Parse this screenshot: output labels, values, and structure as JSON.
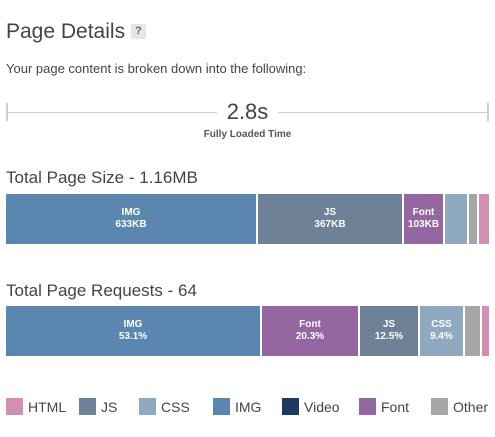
{
  "header": {
    "title": "Page Details",
    "help": "?",
    "subtitle": "Your page content is broken down into the following:"
  },
  "timeline": {
    "value": "2.8s",
    "label": "Fully Loaded Time"
  },
  "colors": {
    "HTML": "#d18fb3",
    "JS": "#6f8196",
    "CSS": "#8fa9c1",
    "IMG": "#5a86b0",
    "Video": "#1c3a63",
    "Font": "#9467a2",
    "Other": "#a6a6a6"
  },
  "page_size": {
    "title": "Total Page Size - 1.16MB",
    "segments": [
      {
        "type": "IMG",
        "name": "IMG",
        "value": "633KB",
        "fraction": 0.521
      },
      {
        "type": "JS",
        "name": "JS",
        "value": "367KB",
        "fraction": 0.302
      },
      {
        "type": "Font",
        "name": "Font",
        "value": "103KB",
        "fraction": 0.085
      },
      {
        "type": "CSS",
        "name": "",
        "value": "",
        "fraction": 0.05
      },
      {
        "type": "Other",
        "name": "",
        "value": "",
        "fraction": 0.02
      },
      {
        "type": "HTML",
        "name": "",
        "value": "",
        "fraction": 0.015
      }
    ]
  },
  "page_requests": {
    "title": "Total Page Requests - 64",
    "segments": [
      {
        "type": "IMG",
        "name": "IMG",
        "value": "53.1%",
        "fraction": 0.531
      },
      {
        "type": "Font",
        "name": "Font",
        "value": "20.3%",
        "fraction": 0.203
      },
      {
        "type": "JS",
        "name": "JS",
        "value": "12.5%",
        "fraction": 0.125
      },
      {
        "type": "CSS",
        "name": "CSS",
        "value": "9.4%",
        "fraction": 0.094
      },
      {
        "type": "Other",
        "name": "",
        "value": "",
        "fraction": 0.035
      },
      {
        "type": "HTML",
        "name": "",
        "value": "",
        "fraction": 0.016
      }
    ]
  },
  "legend": [
    {
      "type": "HTML",
      "label": "HTML"
    },
    {
      "type": "JS",
      "label": "JS"
    },
    {
      "type": "CSS",
      "label": "CSS"
    },
    {
      "type": "IMG",
      "label": "IMG"
    },
    {
      "type": "Video",
      "label": "Video"
    },
    {
      "type": "Font",
      "label": "Font"
    },
    {
      "type": "Other",
      "label": "Other"
    }
  ]
}
